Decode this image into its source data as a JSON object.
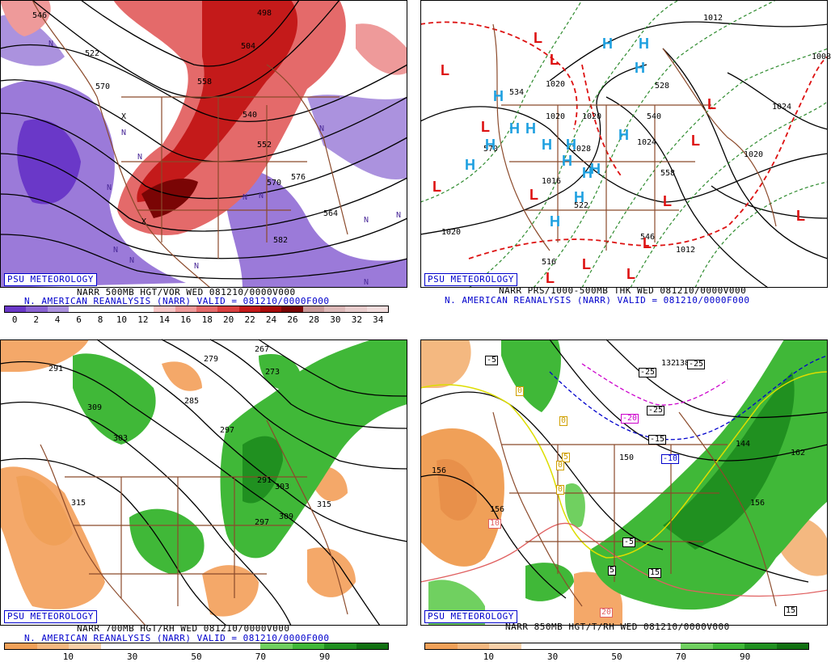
{
  "panels": [
    {
      "id": "p1",
      "branding": "PSU METEOROLOGY",
      "title": "NARR 500MB HGT/VOR WED 081210/0000V000",
      "subtitle": "N. AMERICAN REANALYSIS (NARR) VALID = 081210/0000F000",
      "colorbar": {
        "colors": [
          "#6a38c8",
          "#8a63d2",
          "#ab92de",
          "#ffffff",
          "#ffffff",
          "#ffffff",
          "#ffffff",
          "#f6c6c6",
          "#ee9a9a",
          "#e46a6a",
          "#d94040",
          "#c41a1a",
          "#a80c0c",
          "#7a0505",
          "#c89a9a",
          "#dcb8b8",
          "#e8cccc",
          "#f1dcdc"
        ],
        "ticks": [
          "0",
          "2",
          "4",
          "6",
          "8",
          "10",
          "12",
          "14",
          "16",
          "18",
          "20",
          "22",
          "24",
          "26",
          "28",
          "30",
          "32",
          "34"
        ]
      },
      "contour_labels": [
        "546",
        "498",
        "522",
        "570",
        "504",
        "558",
        "540",
        "552",
        "576",
        "582",
        "564",
        "570"
      ],
      "n_marks": [
        "N",
        "N",
        "N",
        "N",
        "N",
        "N",
        "N",
        "N",
        "N",
        "N",
        "N",
        "N",
        "N"
      ],
      "x_marks": [
        "X",
        "X"
      ]
    },
    {
      "id": "p2",
      "branding": "PSU METEOROLOGY",
      "title": "NARR PRS/1000-500MB THK WED 081210/0000V000",
      "subtitle": "N. AMERICAN REANALYSIS (NARR) VALID = 081210/0000F000",
      "contour_labels": [
        "1012",
        "1008",
        "1020",
        "1020",
        "1024",
        "1028",
        "1024",
        "1020",
        "1020",
        "1012",
        "1016",
        "1020",
        "570",
        "540",
        "546",
        "534",
        "558",
        "522",
        "528",
        "516"
      ],
      "highs": [
        "H",
        "H",
        "H",
        "H",
        "H",
        "H",
        "H",
        "H",
        "H",
        "H",
        "H",
        "H",
        "H",
        "H",
        "H",
        "H"
      ],
      "lows": [
        "L",
        "L",
        "L",
        "L",
        "L",
        "L",
        "L",
        "L",
        "L",
        "L",
        "L",
        "L",
        "L",
        "L"
      ]
    },
    {
      "id": "p3",
      "branding": "PSU METEOROLOGY",
      "title": "NARR 700MB HGT/RH WED 081210/0000V000",
      "subtitle": "N. AMERICAN REANALYSIS (NARR) VALID = 081210/0000F000",
      "colorbar": {
        "colors": [
          "#f0a058",
          "#f4b880",
          "#f8d0a8",
          "#ffffff",
          "#ffffff",
          "#ffffff",
          "#ffffff",
          "#ffffff",
          "#70d060",
          "#40b838",
          "#209020",
          "#107010"
        ],
        "ticks": [
          "10",
          "30",
          "50",
          "70",
          "90"
        ]
      },
      "contour_labels": [
        "291",
        "279",
        "267",
        "273",
        "285",
        "309",
        "303",
        "297",
        "291",
        "297",
        "303",
        "315",
        "315",
        "309"
      ]
    },
    {
      "id": "p4",
      "branding": "PSU METEOROLOGY",
      "title": "NARR 850MB HGT/T/RH WED 081210/0000V000",
      "subtitle": "",
      "colorbar": {
        "colors": [
          "#f0a058",
          "#f4b880",
          "#f8d0a8",
          "#ffffff",
          "#ffffff",
          "#ffffff",
          "#ffffff",
          "#ffffff",
          "#70d060",
          "#40b838",
          "#209020",
          "#107010"
        ],
        "ticks": [
          "10",
          "30",
          "50",
          "70",
          "90"
        ]
      },
      "contour_labels": [
        "156",
        "150",
        "162",
        "156",
        "156",
        "138",
        "132",
        "144"
      ],
      "temp_labels": [
        "-5",
        "-25",
        "-25",
        "0",
        "-20",
        "-25",
        "-15",
        "-10",
        "0",
        "5",
        "0",
        "0",
        "10",
        "-5",
        "5",
        "15",
        "20",
        "15"
      ]
    }
  ]
}
